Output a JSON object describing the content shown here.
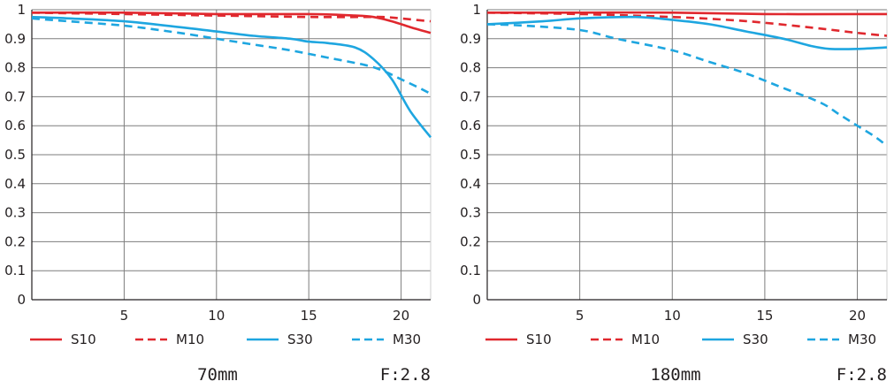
{
  "colors": {
    "red": "#e0282e",
    "blue": "#1ea6e0",
    "grid": "#7d7d7d",
    "gridLight": "#cfcfcf",
    "axis": "#231f20"
  },
  "chart_data": [
    {
      "type": "line",
      "caption": "70mm",
      "aperture": "F:2.8",
      "xlim": [
        0,
        21.6
      ],
      "ylim": [
        0,
        1
      ],
      "x_ticks": [
        "5",
        "10",
        "15",
        "20"
      ],
      "y_ticks": [
        "0",
        "0.1",
        "0.2",
        "0.3",
        "0.4",
        "0.5",
        "0.6",
        "0.7",
        "0.8",
        "0.9",
        "1"
      ],
      "grid": true,
      "series": [
        {
          "name": "S10",
          "color": "red",
          "dash": false,
          "points": [
            [
              0,
              0.99
            ],
            [
              5,
              0.99
            ],
            [
              10,
              0.985
            ],
            [
              15,
              0.985
            ],
            [
              17.5,
              0.98
            ],
            [
              18.5,
              0.975
            ],
            [
              19.5,
              0.96
            ],
            [
              20.5,
              0.94
            ],
            [
              21.6,
              0.92
            ]
          ]
        },
        {
          "name": "M10",
          "color": "red",
          "dash": true,
          "points": [
            [
              0,
              0.99
            ],
            [
              5,
              0.985
            ],
            [
              10,
              0.98
            ],
            [
              15,
              0.975
            ],
            [
              18,
              0.975
            ],
            [
              19,
              0.975
            ],
            [
              20,
              0.97
            ],
            [
              21.6,
              0.96
            ]
          ]
        },
        {
          "name": "S30",
          "color": "blue",
          "dash": false,
          "points": [
            [
              0,
              0.975
            ],
            [
              2,
              0.97
            ],
            [
              5,
              0.96
            ],
            [
              8,
              0.94
            ],
            [
              10,
              0.925
            ],
            [
              12,
              0.91
            ],
            [
              14,
              0.9
            ],
            [
              15,
              0.89
            ],
            [
              16,
              0.885
            ],
            [
              17.5,
              0.87
            ],
            [
              18.5,
              0.83
            ],
            [
              19.5,
              0.76
            ],
            [
              20.5,
              0.65
            ],
            [
              21.6,
              0.56
            ]
          ]
        },
        {
          "name": "M30",
          "color": "blue",
          "dash": true,
          "points": [
            [
              0,
              0.97
            ],
            [
              2,
              0.96
            ],
            [
              5,
              0.945
            ],
            [
              8,
              0.92
            ],
            [
              10,
              0.9
            ],
            [
              12,
              0.88
            ],
            [
              14,
              0.86
            ],
            [
              16,
              0.835
            ],
            [
              18,
              0.81
            ],
            [
              19,
              0.79
            ],
            [
              20,
              0.76
            ],
            [
              21,
              0.73
            ],
            [
              21.6,
              0.71
            ]
          ]
        }
      ]
    },
    {
      "type": "line",
      "caption": "180mm",
      "aperture": "F:2.8",
      "xlim": [
        0,
        21.6
      ],
      "ylim": [
        0,
        1
      ],
      "x_ticks": [
        "5",
        "10",
        "15",
        "20"
      ],
      "y_ticks": [
        "0",
        "0.1",
        "0.2",
        "0.3",
        "0.4",
        "0.5",
        "0.6",
        "0.7",
        "0.8",
        "0.9",
        "1"
      ],
      "grid": true,
      "series": [
        {
          "name": "S10",
          "color": "red",
          "dash": false,
          "points": [
            [
              0,
              0.99
            ],
            [
              5,
              0.99
            ],
            [
              10,
              0.99
            ],
            [
              15,
              0.985
            ],
            [
              20,
              0.985
            ],
            [
              21.6,
              0.985
            ]
          ]
        },
        {
          "name": "M10",
          "color": "red",
          "dash": true,
          "points": [
            [
              0,
              0.99
            ],
            [
              5,
              0.985
            ],
            [
              10,
              0.975
            ],
            [
              13,
              0.965
            ],
            [
              15,
              0.955
            ],
            [
              18,
              0.935
            ],
            [
              20,
              0.92
            ],
            [
              21.6,
              0.91
            ]
          ]
        },
        {
          "name": "S30",
          "color": "blue",
          "dash": false,
          "points": [
            [
              0,
              0.95
            ],
            [
              3,
              0.96
            ],
            [
              5,
              0.97
            ],
            [
              8,
              0.975
            ],
            [
              10,
              0.965
            ],
            [
              12,
              0.95
            ],
            [
              14,
              0.925
            ],
            [
              16,
              0.9
            ],
            [
              17.5,
              0.875
            ],
            [
              18.5,
              0.865
            ],
            [
              20,
              0.865
            ],
            [
              21.6,
              0.87
            ]
          ]
        },
        {
          "name": "M30",
          "color": "blue",
          "dash": true,
          "points": [
            [
              0,
              0.95
            ],
            [
              2,
              0.945
            ],
            [
              5,
              0.93
            ],
            [
              7,
              0.9
            ],
            [
              10,
              0.86
            ],
            [
              12,
              0.82
            ],
            [
              14,
              0.78
            ],
            [
              16,
              0.73
            ],
            [
              18,
              0.68
            ],
            [
              19,
              0.64
            ],
            [
              20,
              0.6
            ],
            [
              21,
              0.56
            ],
            [
              21.6,
              0.53
            ]
          ]
        }
      ]
    }
  ]
}
